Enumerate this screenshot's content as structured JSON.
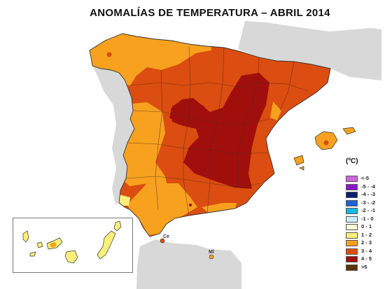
{
  "title": "ANOMALÍAS DE TEMPERATURA – ABRIL 2014",
  "legend": {
    "unit": "(ºC)",
    "items": [
      {
        "label": "<-5",
        "color": "#cc66dd"
      },
      {
        "label": "-5 - -4",
        "color": "#8a18c4"
      },
      {
        "label": "-4 - -3",
        "color": "#0a1f6e"
      },
      {
        "label": "-3 - -2",
        "color": "#1f5fdc"
      },
      {
        "label": "-2 - -1",
        "color": "#1cb6e6"
      },
      {
        "label": "-1 - 0",
        "color": "#cdeffa"
      },
      {
        "label": "0 - 1",
        "color": "#fdfbd8"
      },
      {
        "label": "1 - 2",
        "color": "#fbee7a"
      },
      {
        "label": "2 - 3",
        "color": "#f7a11e"
      },
      {
        "label": "3 - 4",
        "color": "#db4d10"
      },
      {
        "label": "4 - 5",
        "color": "#a00f0c"
      },
      {
        "label": ">5",
        "color": "#5e3208"
      }
    ]
  },
  "places": {
    "ceuta": "Ce",
    "melilla": "Ml"
  },
  "colors": {
    "land_other": "#d8d8d8",
    "sea": "#ffffff",
    "border": "#333333"
  }
}
